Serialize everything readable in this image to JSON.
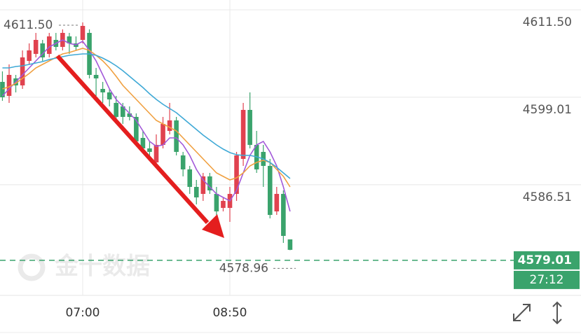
{
  "chart_data": {
    "type": "candlestick",
    "categories": [
      null,
      null,
      null,
      null,
      null,
      null,
      null,
      null,
      null,
      null,
      null,
      null,
      "07:00",
      null,
      null,
      null,
      null,
      null,
      null,
      null,
      null,
      null,
      null,
      null,
      null,
      null,
      null,
      null,
      null,
      null,
      null,
      null,
      null,
      null,
      "08:50",
      null,
      null,
      null,
      null,
      null,
      null,
      null,
      null,
      null
    ],
    "open": [
      4603.0,
      4601.0,
      4603.5,
      4602.5,
      4606.0,
      4607.0,
      4608.5,
      4607.0,
      4609.0,
      4608.0,
      4609.5,
      4608.5,
      4609.0,
      4610.0,
      4604.0,
      4602.0,
      4601.5,
      4600.0,
      4599.5,
      4598.5,
      4598.0,
      4595.0,
      4593.5,
      4591.5,
      4594.0,
      4596.0,
      4597.5,
      4592.5,
      4590.5,
      4588.0,
      4587.0,
      4589.5,
      4587.0,
      4585.0,
      4585.0,
      4587.0,
      4592.0,
      4599.0,
      4594.0,
      4593.0,
      4591.0,
      4584.5,
      4587.0,
      4580.5
    ],
    "high": [
      4604.5,
      4605.5,
      4604.0,
      4607.5,
      4608.5,
      4610.0,
      4609.0,
      4610.0,
      4610.0,
      4610.5,
      4610.0,
      4609.5,
      4611.5,
      4610.5,
      4605.0,
      4603.0,
      4602.0,
      4601.0,
      4600.0,
      4599.5,
      4598.5,
      4596.0,
      4594.5,
      4595.5,
      4598.0,
      4600.0,
      4598.0,
      4593.0,
      4591.0,
      4589.0,
      4590.0,
      4590.0,
      4588.0,
      4586.5,
      4588.0,
      4593.0,
      4600.0,
      4601.5,
      4596.0,
      4594.0,
      4592.0,
      4588.0,
      4587.5,
      4580.5
    ],
    "low": [
      4600.3,
      4600.0,
      4601.5,
      4602.0,
      4605.5,
      4606.5,
      4606.0,
      4606.5,
      4607.5,
      4607.5,
      4607.0,
      4607.5,
      4608.5,
      4603.5,
      4601.0,
      4600.0,
      4599.5,
      4597.5,
      4597.0,
      4597.5,
      4594.0,
      4593.0,
      4592.0,
      4591.0,
      4593.5,
      4595.5,
      4592.5,
      4589.5,
      4587.0,
      4585.5,
      4586.0,
      4587.0,
      4584.0,
      4584.5,
      4583.0,
      4586.0,
      4591.0,
      4593.5,
      4590.0,
      4588.0,
      4583.5,
      4584.0,
      4580.0,
      4578.96
    ],
    "close": [
      4600.8,
      4604.0,
      4602.5,
      4606.5,
      4607.5,
      4609.0,
      4606.5,
      4609.5,
      4608.0,
      4610.0,
      4608.5,
      4608.0,
      4611.0,
      4604.0,
      4603.5,
      4601.5,
      4600.5,
      4598.0,
      4598.0,
      4598.0,
      4594.5,
      4593.5,
      4593.0,
      4594.0,
      4597.0,
      4597.5,
      4593.0,
      4590.5,
      4588.0,
      4586.5,
      4589.5,
      4587.5,
      4584.5,
      4586.0,
      4587.0,
      4592.5,
      4599.0,
      4594.0,
      4590.5,
      4591.0,
      4584.0,
      4587.0,
      4581.0,
      4579.01
    ],
    "up_color": "#e0424f",
    "down_color": "#3aa36c",
    "lines": [
      {
        "color": "#a259d9",
        "values": [
          4601,
          4602,
          4603,
          4604,
          4605,
          4606,
          4607,
          4608,
          4608.5,
          4609,
          4608.5,
          4608.3,
          4608.8,
          4607.5,
          4606,
          4604,
          4602,
          4600.5,
          4599.5,
          4598.5,
          4597.5,
          4596,
          4594.5,
          4593.8,
          4594,
          4595,
          4595,
          4594,
          4592.5,
          4590.5,
          4589,
          4588,
          4587,
          4586.5,
          4586,
          4587.5,
          4590,
          4592.5,
          4594,
          4594.5,
          4593,
          4591,
          4588,
          4584.5
        ]
      },
      {
        "color": "#f0a040",
        "values": [
          4602,
          4602.3,
          4602.8,
          4603.5,
          4604.2,
          4605,
          4605.5,
          4606,
          4606.5,
          4607,
          4607.2,
          4607.5,
          4607.8,
          4607.5,
          4606.8,
          4606,
          4605,
          4603.8,
          4602.5,
          4601.5,
          4600.5,
          4599.5,
          4598.5,
          4597.5,
          4597,
          4596.5,
          4596,
          4595,
          4594,
          4593,
          4592,
          4591,
          4590,
          4589.5,
          4589,
          4589.3,
          4590,
          4591,
          4591.5,
          4591.8,
          4591.5,
          4590.5,
          4589.5,
          4588
        ]
      },
      {
        "color": "#3fa9d6",
        "values": [
          4605,
          4605,
          4605.2,
          4605.3,
          4605.5,
          4605.7,
          4605.9,
          4606.2,
          4606.4,
          4606.6,
          4606.8,
          4606.9,
          4607,
          4607,
          4606.8,
          4606.4,
          4605.9,
          4605.3,
          4604.6,
          4603.8,
          4603,
          4602.2,
          4601.3,
          4600.5,
          4599.8,
          4599.2,
          4598.6,
          4597.8,
          4597,
          4596.2,
          4595.4,
          4594.7,
          4594,
          4593.4,
          4592.9,
          4592.6,
          4592.5,
          4592.5,
          4592.3,
          4592,
          4591.5,
          4590.8,
          4590,
          4589.2
        ]
      }
    ],
    "ylim": [
      4572.7,
      4614.7
    ],
    "yticks": [
      {
        "value": 4611.5,
        "label": "4611.50"
      },
      4599.01,
      4586.51
    ],
    "max_label": {
      "value": 4611.5,
      "label": "4611.50"
    },
    "min_label": {
      "value": 4578.96,
      "label": "4578.96"
    },
    "last_price": {
      "value": 4579.01,
      "label": "4579.01"
    },
    "countdown": "27:12",
    "watermark": "金十数据"
  }
}
